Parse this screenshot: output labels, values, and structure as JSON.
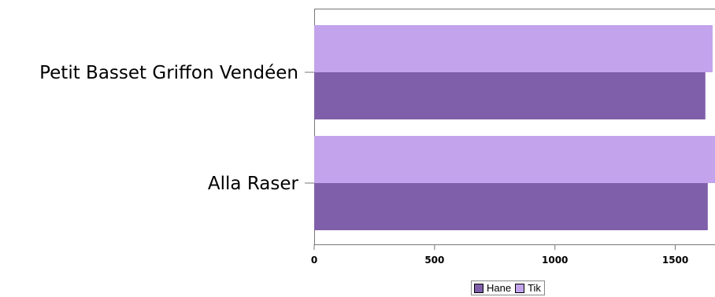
{
  "chart_data": {
    "type": "bar",
    "orientation": "horizontal",
    "categories": [
      "Petit Basset Griffon Vendéen",
      "Alla Raser"
    ],
    "series": [
      {
        "name": "Hane",
        "color": "#7f5fa9",
        "values": [
          1625,
          1635
        ]
      },
      {
        "name": "Tik",
        "color": "#c2a3ec",
        "values": [
          1655,
          1665
        ]
      }
    ],
    "xlim": [
      0,
      1665
    ],
    "xticks": [
      0,
      500,
      1000,
      1500
    ],
    "grid": false,
    "legend_position": "bottom"
  }
}
